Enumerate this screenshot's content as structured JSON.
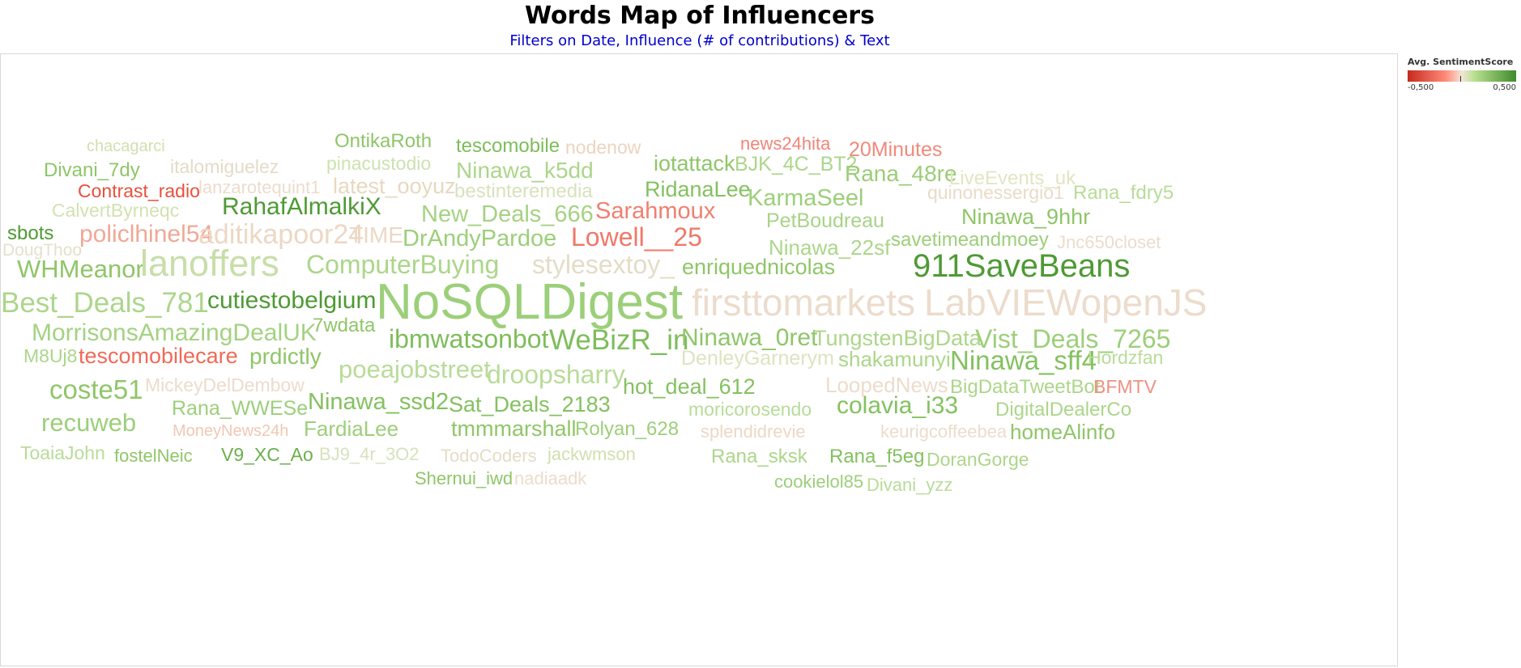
{
  "header": {
    "title": "Words Map of Influencers",
    "subtitle": "Filters on Date, Influence (# of contributions) & Text"
  },
  "legend": {
    "title": "Avg. SentimentScore",
    "min_label": "-0,500",
    "max_label": "0,500",
    "min_color": "#c62a1c",
    "mid_color": "#f2e6d6",
    "max_color": "#3f8a2a"
  },
  "chart_data": {
    "type": "word-cloud",
    "title": "Words Map of Influencers",
    "subtitle": "Filters on Date, Influence (# of contributions) & Text",
    "size_measure": "Influence (# of contributions)",
    "color_measure": "Avg. SentimentScore",
    "color_range": [
      -0.5,
      0.5
    ],
    "words": [
      {
        "text": "chacagarci",
        "color": "#d2dfae"
      },
      {
        "text": "OntikaRoth",
        "color": "#8fc668"
      },
      {
        "text": "tescomobile",
        "color": "#7dbd5a"
      },
      {
        "text": "nodenow",
        "color": "#ecd4c0"
      },
      {
        "text": "news24hita",
        "color": "#f08678"
      },
      {
        "text": "20Minutes",
        "color": "#f08a7c"
      },
      {
        "text": "Divani_7dy",
        "color": "#8fc668"
      },
      {
        "text": "italomiguelez",
        "color": "#e2dcc8"
      },
      {
        "text": "pinacustodio",
        "color": "#cde2b0"
      },
      {
        "text": "Ninawa_k5dd",
        "color": "#acd68a"
      },
      {
        "text": "iotattack",
        "color": "#8fc668"
      },
      {
        "text": "BJK_4C_BT2",
        "color": "#acd68a"
      },
      {
        "text": "Rana_48re",
        "color": "#9bcd78"
      },
      {
        "text": "LiveEvents_uk",
        "color": "#e4e4c4"
      },
      {
        "text": "Contrast_radio",
        "color": "#e8503c"
      },
      {
        "text": "lanzarotequint1",
        "color": "#ecdccc"
      },
      {
        "text": "latest_ooyuz",
        "color": "#e8d8c0"
      },
      {
        "text": "bestinteremedia",
        "color": "#d8e2bc"
      },
      {
        "text": "RidanaLee",
        "color": "#84c160"
      },
      {
        "text": "KarmaSeel",
        "color": "#9ccf7a"
      },
      {
        "text": "quinonessergio1",
        "color": "#e8dcc8"
      },
      {
        "text": "Rana_fdry5",
        "color": "#b8dc98"
      },
      {
        "text": "CalvertByrneqc",
        "color": "#d2e2b0"
      },
      {
        "text": "RahafAlmalkiX",
        "color": "#4e9a34"
      },
      {
        "text": "New_Deals_666",
        "color": "#a4d282"
      },
      {
        "text": "Sarahmoux",
        "color": "#f08070"
      },
      {
        "text": "PetBoudreau",
        "color": "#a8d486"
      },
      {
        "text": "Ninawa_9hhr",
        "color": "#8fc668"
      },
      {
        "text": "sbots",
        "color": "#4e9a34"
      },
      {
        "text": "policlhinel54",
        "color": "#f0a896"
      },
      {
        "text": "aditikapoor24",
        "color": "#ecd8c4"
      },
      {
        "text": "TIME",
        "color": "#ecd8c4"
      },
      {
        "text": "DrAndyPardoe",
        "color": "#9ccf7a"
      },
      {
        "text": "Lowell__25",
        "color": "#f07868"
      },
      {
        "text": "Ninawa_22sf",
        "color": "#acd68a"
      },
      {
        "text": "savetimeandmoey",
        "color": "#9ccf7a"
      },
      {
        "text": "Jnc650closet",
        "color": "#ecdccc"
      },
      {
        "text": "DougThoo",
        "color": "#e4e0cc"
      },
      {
        "text": "WHMeanor",
        "color": "#8fc668"
      },
      {
        "text": "lanoffers",
        "color": "#c8dea8"
      },
      {
        "text": "ComputerBuying",
        "color": "#acd68a"
      },
      {
        "text": "stylesextoy_",
        "color": "#e4dcc8"
      },
      {
        "text": "enriquednicolas",
        "color": "#8fc668"
      },
      {
        "text": "911SaveBeans",
        "color": "#4e9a34"
      },
      {
        "text": "Best_Deals_781",
        "color": "#acd68a"
      },
      {
        "text": "cutiestobelgium",
        "color": "#4e9a34"
      },
      {
        "text": "NoSQLDigest",
        "color": "#9ccf7a"
      },
      {
        "text": "firsttomarkets",
        "color": "#ecdccc"
      },
      {
        "text": "LabVIEWopenJS",
        "color": "#ecdccc"
      },
      {
        "text": "MorrisonsAmazingDealUK",
        "color": "#a4d282"
      },
      {
        "text": "7wdata",
        "color": "#8fc668"
      },
      {
        "text": "ibmwatsonbot",
        "color": "#7dbd5a"
      },
      {
        "text": "WeBizR_in",
        "color": "#7dbd5a"
      },
      {
        "text": "Ninawa_0ret",
        "color": "#8fc668"
      },
      {
        "text": "TungstenBigData",
        "color": "#acd68a"
      },
      {
        "text": "Vist_Deals_7265",
        "color": "#9ccf7a"
      },
      {
        "text": "M8Uj8",
        "color": "#acd68a"
      },
      {
        "text": "tescomobilecare",
        "color": "#f06a58"
      },
      {
        "text": "prdictly",
        "color": "#8fc668"
      },
      {
        "text": "poeajobstreet",
        "color": "#b8dc98"
      },
      {
        "text": "droopsharry",
        "color": "#b8dc98"
      },
      {
        "text": "DenleyGarnerym",
        "color": "#dce4c0"
      },
      {
        "text": "shakamunyi",
        "color": "#acd68a"
      },
      {
        "text": "Ninawa_sff4",
        "color": "#84c160"
      },
      {
        "text": "Hordzfan",
        "color": "#b8dc98"
      },
      {
        "text": "coste51",
        "color": "#8fc668"
      },
      {
        "text": "MickeyDelDembow",
        "color": "#ecdccc"
      },
      {
        "text": "hot_deal_612",
        "color": "#84c160"
      },
      {
        "text": "LoopedNews",
        "color": "#ecdccc"
      },
      {
        "text": "BigDataTweetBot",
        "color": "#acd68a"
      },
      {
        "text": "BFMTV",
        "color": "#f09080"
      },
      {
        "text": "Rana_WWESe",
        "color": "#9ccf7a"
      },
      {
        "text": "Ninawa_ssd2",
        "color": "#84c160"
      },
      {
        "text": "Sat_Deals_2183",
        "color": "#84c160"
      },
      {
        "text": "moricorosendo",
        "color": "#b8dc98"
      },
      {
        "text": "colavia_i33",
        "color": "#84c160"
      },
      {
        "text": "DigitalDealerCo",
        "color": "#acd68a"
      },
      {
        "text": "recuweb",
        "color": "#9ccf7a"
      },
      {
        "text": "MoneyNews24h",
        "color": "#f0c8b4"
      },
      {
        "text": "FardiaLee",
        "color": "#9ccf7a"
      },
      {
        "text": "tmmmarshall",
        "color": "#8fc668"
      },
      {
        "text": "Rolyan_628",
        "color": "#9ccf7a"
      },
      {
        "text": "splendidrevie",
        "color": "#ecd8c4"
      },
      {
        "text": "keurigcoffeebea",
        "color": "#ecdccc"
      },
      {
        "text": "homeAlinfo",
        "color": "#8fc668"
      },
      {
        "text": "ToaiaJohn",
        "color": "#b8dc98"
      },
      {
        "text": "fostelNeic",
        "color": "#8fc668"
      },
      {
        "text": "V9_XC_Ao",
        "color": "#6bb04c"
      },
      {
        "text": "BJ9_4r_3O2",
        "color": "#d8e2bc"
      },
      {
        "text": "TodoCoders",
        "color": "#e4dcc8"
      },
      {
        "text": "jackwmson",
        "color": "#d2dfae"
      },
      {
        "text": "Rana_sksk",
        "color": "#acd68a"
      },
      {
        "text": "Rana_f5eg",
        "color": "#84c160"
      },
      {
        "text": "DoranGorge",
        "color": "#acd68a"
      },
      {
        "text": "Shernui_iwd",
        "color": "#8fc668"
      },
      {
        "text": "nadiaadk",
        "color": "#ecdccc"
      },
      {
        "text": "cookielol85",
        "color": "#9ccf7a"
      },
      {
        "text": "Divani_yzz",
        "color": "#b8dc98"
      }
    ]
  }
}
